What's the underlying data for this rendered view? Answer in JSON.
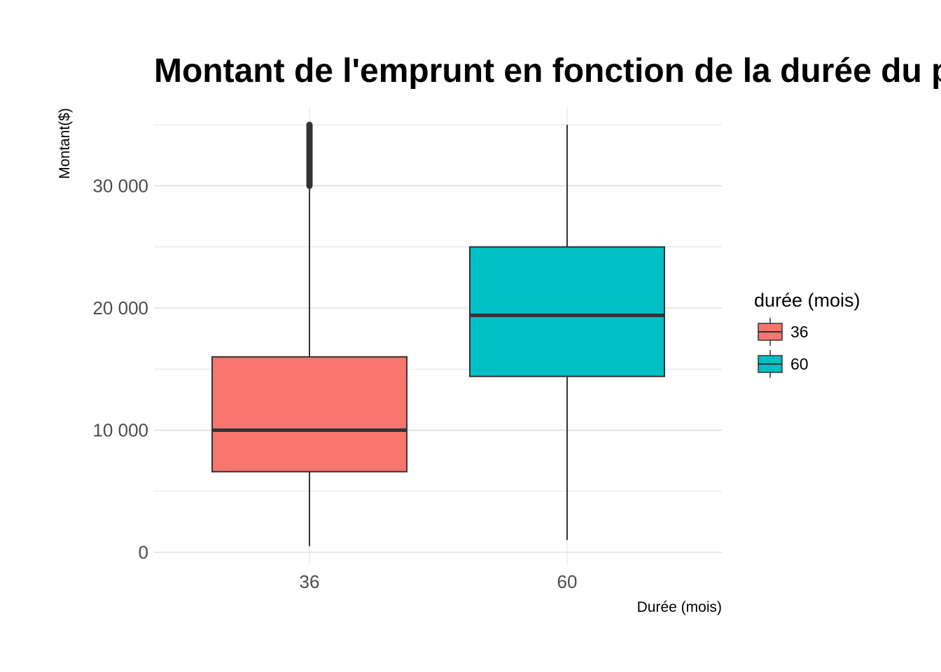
{
  "chart_data": {
    "type": "boxplot",
    "title": "Montant de l'emprunt en fonction de la durée du p",
    "xlabel": "Durée (mois)",
    "ylabel": "Montant($)",
    "categories": [
      "36",
      "60"
    ],
    "ylim": [
      -1000,
      36500
    ],
    "yticks": [
      0,
      10000,
      20000,
      30000
    ],
    "ytick_labels": [
      "0",
      "10 000",
      "20 000",
      "30 000"
    ],
    "grid": true,
    "legend": {
      "title": "durée (mois)",
      "position": "right",
      "entries": [
        "36",
        "60"
      ]
    },
    "series": [
      {
        "category": "36",
        "color": "#F8766D",
        "whisker_low": 500,
        "q1": 6600,
        "median": 10000,
        "q3": 16000,
        "whisker_high": 30000,
        "outliers_min": 30000,
        "outliers_max": 35000
      },
      {
        "category": "60",
        "color": "#00BFC4",
        "whisker_low": 1000,
        "q1": 14400,
        "median": 19400,
        "q3": 25000,
        "whisker_high": 35000
      }
    ]
  }
}
